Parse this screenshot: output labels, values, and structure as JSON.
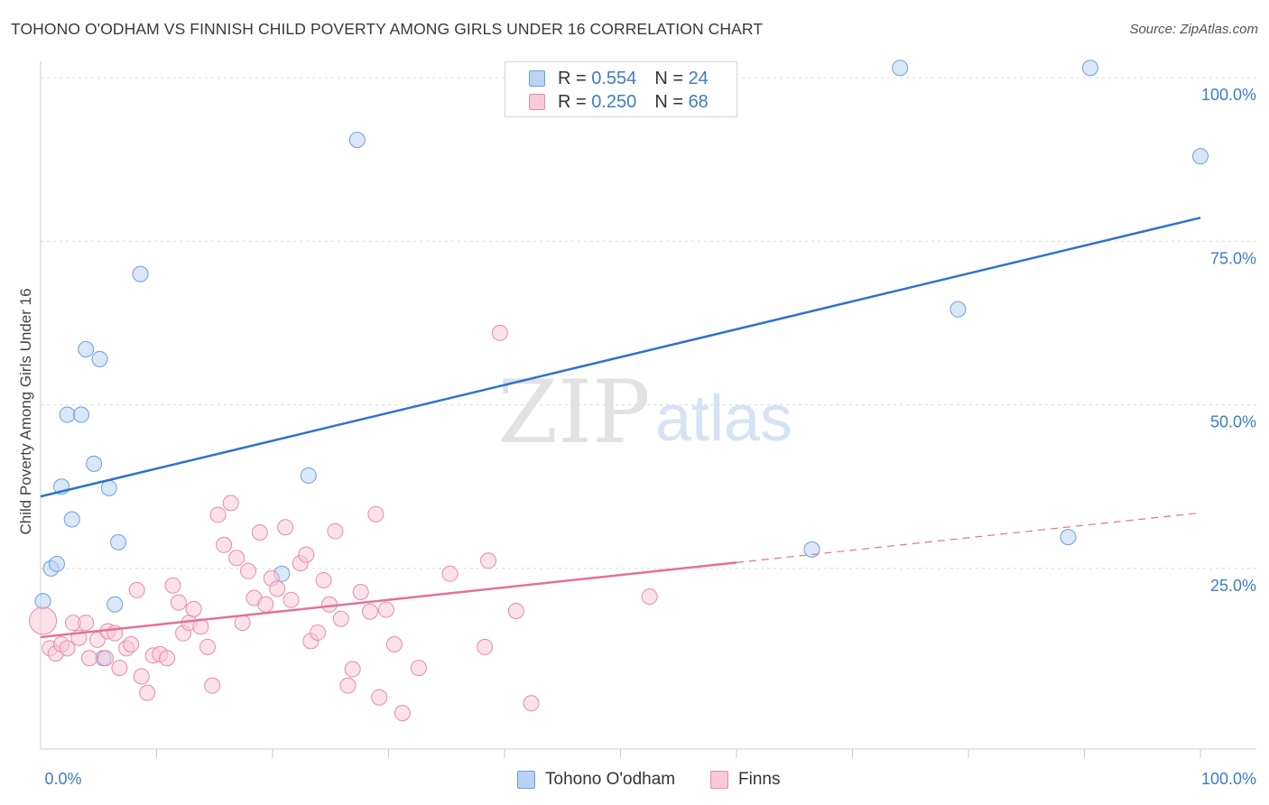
{
  "header": {
    "title": "TOHONO O'ODHAM VS FINNISH CHILD POVERTY AMONG GIRLS UNDER 16 CORRELATION CHART",
    "source": "Source: ZipAtlas.com"
  },
  "watermark": {
    "zip": "ZIP",
    "atlas": "atlas"
  },
  "legend_top": [
    {
      "r_label": "R =",
      "r_value": "0.554",
      "n_label": "N =",
      "n_value": "24"
    },
    {
      "r_label": "R =",
      "r_value": "0.250",
      "n_label": "N =",
      "n_value": "68"
    }
  ],
  "legend_bottom": [
    "Tohono O'odham",
    "Finns"
  ],
  "colors": {
    "blue_fill": "#b9d3f3",
    "blue_stroke": "#6f9fdc",
    "blue_line": "#2f72cf",
    "pink_fill": "#f8c9d8",
    "pink_stroke": "#e98aa9",
    "pink_line": "#e4709a",
    "axis_label": "#3d7cc9",
    "grid": "#d9d9d9"
  },
  "chart_data": {
    "type": "scatter",
    "title": "TOHONO O'ODHAM VS FINNISH CHILD POVERTY AMONG GIRLS UNDER 16 CORRELATION CHART",
    "xlabel": "",
    "ylabel": "Child Poverty Among Girls Under 16",
    "xlim": [
      0,
      100
    ],
    "ylim": [
      -2.6,
      102.5
    ],
    "x_tick_labels": [
      "0.0%",
      "100.0%"
    ],
    "y_ticks": [
      25,
      50,
      75,
      100
    ],
    "y_tick_labels": [
      "25.0%",
      "50.0%",
      "75.0%",
      "100.0%"
    ],
    "grid": true,
    "legend_position": "top-center",
    "series": [
      {
        "name": "Tohono O'odham",
        "color": "#6f9fdc",
        "r": 0.554,
        "n": 24,
        "trend": {
          "x": [
            0,
            100
          ],
          "y": [
            36.0,
            78.6
          ],
          "dashed_from": null
        },
        "points": [
          {
            "x": 0.2,
            "y": 20.0
          },
          {
            "x": 0.9,
            "y": 25.0
          },
          {
            "x": 1.4,
            "y": 25.7
          },
          {
            "x": 1.8,
            "y": 37.5
          },
          {
            "x": 2.3,
            "y": 48.5
          },
          {
            "x": 2.7,
            "y": 32.5
          },
          {
            "x": 3.5,
            "y": 48.5
          },
          {
            "x": 3.9,
            "y": 58.5
          },
          {
            "x": 4.6,
            "y": 41.0
          },
          {
            "x": 5.1,
            "y": 57.0
          },
          {
            "x": 5.4,
            "y": 11.3
          },
          {
            "x": 5.9,
            "y": 37.3
          },
          {
            "x": 6.4,
            "y": 19.5
          },
          {
            "x": 6.7,
            "y": 29.0
          },
          {
            "x": 8.6,
            "y": 70.0
          },
          {
            "x": 20.8,
            "y": 24.2
          },
          {
            "x": 23.1,
            "y": 39.2
          },
          {
            "x": 27.3,
            "y": 90.5
          },
          {
            "x": 66.5,
            "y": 27.9
          },
          {
            "x": 74.1,
            "y": 101.5
          },
          {
            "x": 79.1,
            "y": 64.6
          },
          {
            "x": 88.6,
            "y": 29.8
          },
          {
            "x": 90.5,
            "y": 101.5
          },
          {
            "x": 100.0,
            "y": 88.0
          }
        ]
      },
      {
        "name": "Finns",
        "color": "#e98aa9",
        "r": 0.25,
        "n": 68,
        "trend": {
          "x": [
            0,
            100
          ],
          "y": [
            14.5,
            33.5
          ],
          "dashed_from": 60
        },
        "points": [
          {
            "x": 0.2,
            "y": 17.0
          },
          {
            "x": 0.8,
            "y": 12.8
          },
          {
            "x": 1.3,
            "y": 12.0
          },
          {
            "x": 1.8,
            "y": 13.4
          },
          {
            "x": 2.3,
            "y": 12.8
          },
          {
            "x": 2.8,
            "y": 16.7
          },
          {
            "x": 3.3,
            "y": 14.4
          },
          {
            "x": 3.9,
            "y": 16.7
          },
          {
            "x": 4.2,
            "y": 11.3
          },
          {
            "x": 4.9,
            "y": 14.1
          },
          {
            "x": 5.6,
            "y": 11.3
          },
          {
            "x": 5.8,
            "y": 15.4
          },
          {
            "x": 6.4,
            "y": 15.1
          },
          {
            "x": 6.8,
            "y": 9.8
          },
          {
            "x": 7.4,
            "y": 12.8
          },
          {
            "x": 7.8,
            "y": 13.4
          },
          {
            "x": 8.3,
            "y": 21.7
          },
          {
            "x": 8.7,
            "y": 8.5
          },
          {
            "x": 9.2,
            "y": 6.0
          },
          {
            "x": 9.7,
            "y": 11.7
          },
          {
            "x": 10.3,
            "y": 11.9
          },
          {
            "x": 10.9,
            "y": 11.3
          },
          {
            "x": 11.4,
            "y": 22.4
          },
          {
            "x": 11.9,
            "y": 19.8
          },
          {
            "x": 12.3,
            "y": 15.1
          },
          {
            "x": 12.8,
            "y": 16.7
          },
          {
            "x": 13.2,
            "y": 18.8
          },
          {
            "x": 13.8,
            "y": 16.1
          },
          {
            "x": 14.4,
            "y": 13.0
          },
          {
            "x": 14.8,
            "y": 7.1
          },
          {
            "x": 15.3,
            "y": 33.2
          },
          {
            "x": 15.8,
            "y": 28.6
          },
          {
            "x": 16.4,
            "y": 35.0
          },
          {
            "x": 16.9,
            "y": 26.6
          },
          {
            "x": 17.4,
            "y": 16.7
          },
          {
            "x": 17.9,
            "y": 24.6
          },
          {
            "x": 18.4,
            "y": 20.5
          },
          {
            "x": 18.9,
            "y": 30.5
          },
          {
            "x": 19.4,
            "y": 19.5
          },
          {
            "x": 19.9,
            "y": 23.5
          },
          {
            "x": 20.4,
            "y": 21.9
          },
          {
            "x": 21.1,
            "y": 31.3
          },
          {
            "x": 21.6,
            "y": 20.2
          },
          {
            "x": 22.4,
            "y": 25.8
          },
          {
            "x": 22.9,
            "y": 27.1
          },
          {
            "x": 23.3,
            "y": 13.9
          },
          {
            "x": 23.9,
            "y": 15.2
          },
          {
            "x": 24.4,
            "y": 23.2
          },
          {
            "x": 24.9,
            "y": 19.5
          },
          {
            "x": 25.4,
            "y": 30.7
          },
          {
            "x": 25.9,
            "y": 17.3
          },
          {
            "x": 26.5,
            "y": 7.1
          },
          {
            "x": 26.9,
            "y": 9.6
          },
          {
            "x": 27.6,
            "y": 21.4
          },
          {
            "x": 28.4,
            "y": 18.4
          },
          {
            "x": 28.9,
            "y": 33.3
          },
          {
            "x": 29.2,
            "y": 5.3
          },
          {
            "x": 29.8,
            "y": 18.7
          },
          {
            "x": 30.5,
            "y": 13.4
          },
          {
            "x": 31.2,
            "y": 2.9
          },
          {
            "x": 32.6,
            "y": 9.8
          },
          {
            "x": 35.3,
            "y": 24.2
          },
          {
            "x": 38.3,
            "y": 13.0
          },
          {
            "x": 38.6,
            "y": 26.2
          },
          {
            "x": 39.6,
            "y": 61.0
          },
          {
            "x": 41.0,
            "y": 18.5
          },
          {
            "x": 42.3,
            "y": 4.4
          },
          {
            "x": 52.5,
            "y": 20.7
          }
        ]
      }
    ]
  }
}
